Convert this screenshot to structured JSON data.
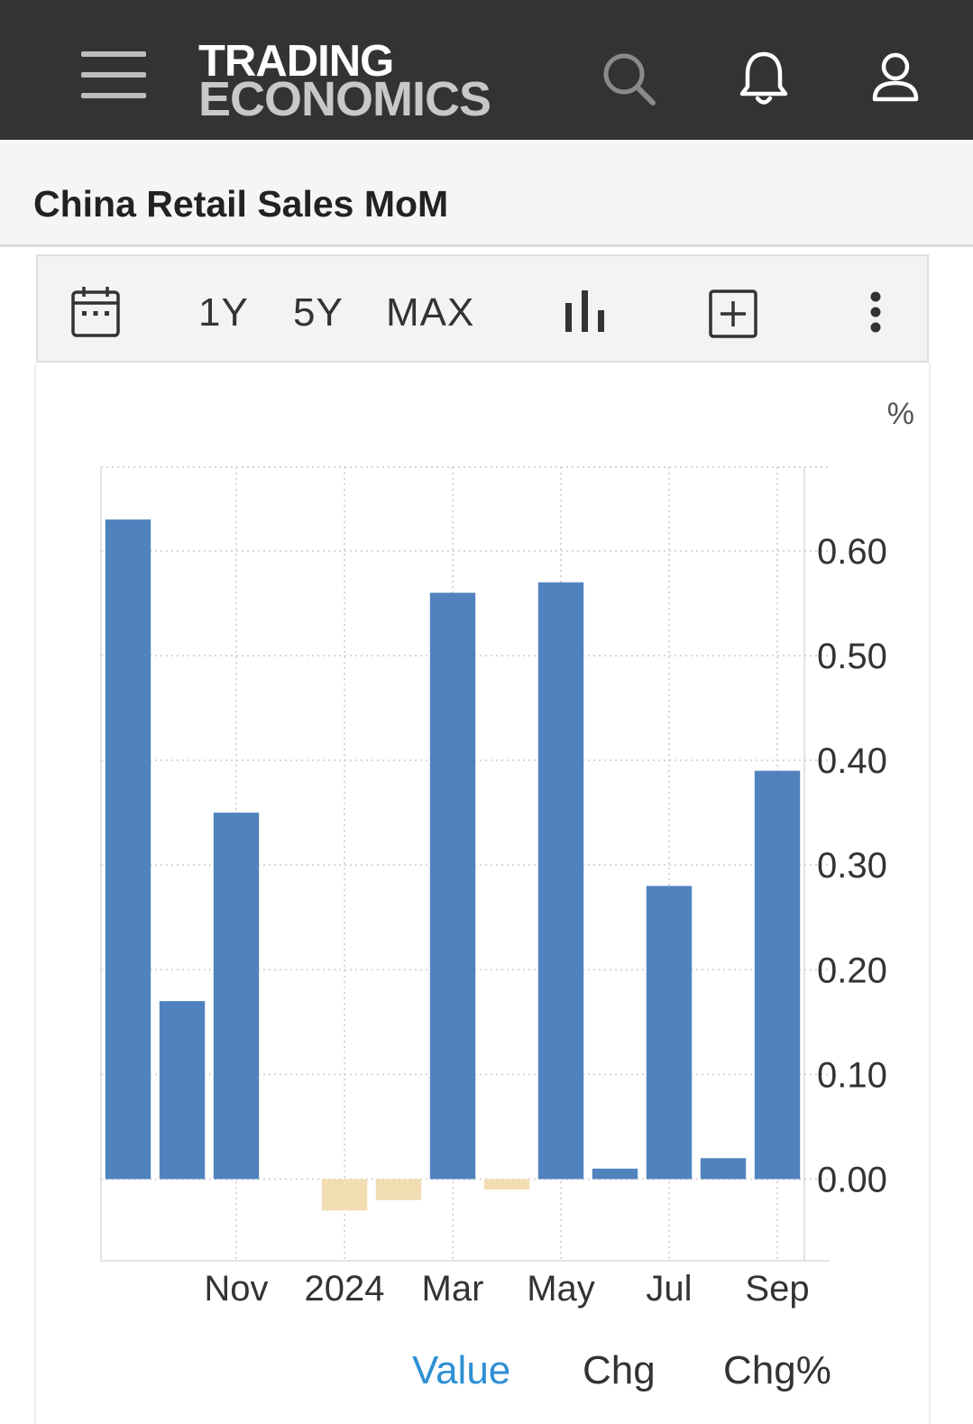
{
  "header": {
    "menu_icon": "hamburger-menu-icon",
    "logo_line1": "TRADING",
    "logo_line2": "ECONOMICS",
    "search_icon": "search-icon",
    "notification_icon": "bell-icon",
    "user_icon": "user-icon"
  },
  "page": {
    "title": "China Retail Sales MoM"
  },
  "toolbar": {
    "calendar_icon": "calendar-icon",
    "ranges": [
      "1Y",
      "5Y",
      "MAX"
    ],
    "chart_type_icon": "bar-chart-icon",
    "add_icon": "plus-box-icon",
    "more_icon": "vertical-dots-icon"
  },
  "chart_data": {
    "type": "bar",
    "unit_label": "%",
    "categories": [
      "2023-09",
      "2023-10",
      "2023-11",
      "2023-12",
      "2024-01",
      "2024-02",
      "2024-03",
      "2024-04",
      "2024-05",
      "2024-06",
      "2024-07",
      "2024-08",
      "2024-09"
    ],
    "x_tick_labels": [
      {
        "label": "Nov",
        "category": "2023-11"
      },
      {
        "label": "2024",
        "category": "2024-01"
      },
      {
        "label": "Mar",
        "category": "2024-03"
      },
      {
        "label": "May",
        "category": "2024-05"
      },
      {
        "label": "Jul",
        "category": "2024-07"
      },
      {
        "label": "Sep",
        "category": "2024-09"
      }
    ],
    "series": [
      {
        "values": [
          0.63,
          0.17,
          0.35,
          null,
          -0.03,
          -0.02,
          0.56,
          -0.01,
          0.57,
          0.01,
          0.28,
          0.02,
          0.39
        ]
      }
    ],
    "ylim": [
      -0.078,
      0.68
    ],
    "y_ticks": [
      "0.00",
      "0.10",
      "0.20",
      "0.30",
      "0.40",
      "0.50",
      "0.60"
    ],
    "y_axis_position": "right",
    "grid": true,
    "colors": {
      "positive": "#5082be",
      "negative": "#f2ddb3"
    }
  },
  "legend_tabs": [
    {
      "label": "Value",
      "active": true
    },
    {
      "label": "Chg",
      "active": false
    },
    {
      "label": "Chg%",
      "active": false
    }
  ],
  "colors": {
    "header_bg": "#333333",
    "active_tab": "#2d8fd5",
    "text": "#333333"
  }
}
